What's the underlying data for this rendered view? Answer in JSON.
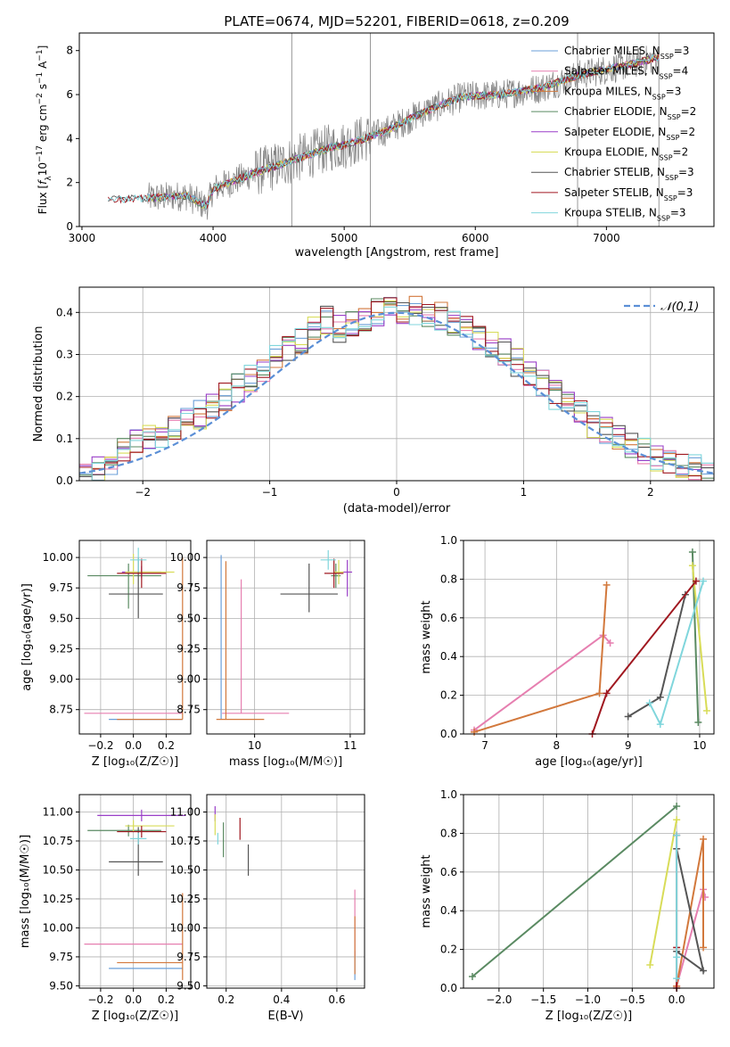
{
  "title": "PLATE=0674, MJD=52201, FIBERID=0618, z=0.209",
  "colors": {
    "chabrier_miles": "#6a9fd8",
    "salpeter_miles": "#e67fb0",
    "kroupa_miles": "#d2783c",
    "chabrier_elodie": "#5a8a62",
    "salpeter_elodie": "#9a3fc8",
    "kroupa_elodie": "#d8dc58",
    "chabrier_stelib": "#555555",
    "salpeter_stelib": "#a01820",
    "kroupa_stelib": "#80d6dc",
    "data": "#808080",
    "normal": "#5b8fd6"
  },
  "chart_data": [
    {
      "id": "spectrum",
      "type": "line",
      "xlabel": "wavelength [Angstrom, rest frame]",
      "ylabel_parts": [
        "Flux [",
        "f",
        "λ",
        "10",
        "−17",
        " erg cm",
        "−2",
        " s",
        "−1",
        " A",
        "−1",
        "]"
      ],
      "xlim": [
        2980,
        7820
      ],
      "ylim": [
        0,
        8.8
      ],
      "xticks": [
        3000,
        4000,
        5000,
        6000,
        7000
      ],
      "yticks": [
        0,
        2,
        4,
        6,
        8
      ],
      "legend": [
        {
          "label": "Chabrier MILES, N",
          "sub": "SSP",
          "val": "=3"
        },
        {
          "label": "Salpeter MILES, N",
          "sub": "SSP",
          "val": "=4"
        },
        {
          "label": "Kroupa MILES, N",
          "sub": "SSP",
          "val": "=3"
        },
        {
          "label": "Chabrier ELODIE, N",
          "sub": "SSP",
          "val": "=2"
        },
        {
          "label": "Salpeter ELODIE, N",
          "sub": "SSP",
          "val": "=2"
        },
        {
          "label": "Kroupa ELODIE, N",
          "sub": "SSP",
          "val": "=2"
        },
        {
          "label": "Chabrier STELIB, N",
          "sub": "SSP",
          "val": "=3"
        },
        {
          "label": "Salpeter STELIB, N",
          "sub": "SSP",
          "val": "=3"
        },
        {
          "label": "Kroupa STELIB, N",
          "sub": "SSP",
          "val": "=3"
        }
      ],
      "continuum": [
        [
          3200,
          1.2
        ],
        [
          3500,
          1.3
        ],
        [
          3800,
          1.4
        ],
        [
          3950,
          0.9
        ],
        [
          4000,
          1.7
        ],
        [
          4300,
          2.4
        ],
        [
          4600,
          3.0
        ],
        [
          4900,
          3.6
        ],
        [
          5000,
          3.7
        ],
        [
          5300,
          4.3
        ],
        [
          5600,
          5.2
        ],
        [
          5900,
          5.9
        ],
        [
          6200,
          6.0
        ],
        [
          6500,
          6.3
        ],
        [
          6800,
          6.9
        ],
        [
          7200,
          7.4
        ],
        [
          7400,
          7.7
        ]
      ],
      "spikes": [
        [
          4600,
          8.8
        ],
        [
          5200,
          8.8
        ],
        [
          6780,
          8.8
        ],
        [
          7400,
          8.8
        ]
      ]
    },
    {
      "id": "residuals",
      "type": "histogram",
      "xlabel": "(data-model)/error",
      "ylabel": "Normed distribution",
      "xlim": [
        -2.5,
        2.5
      ],
      "ylim": [
        0,
        0.46
      ],
      "xticks": [
        -2,
        -1,
        0,
        1,
        2
      ],
      "yticks": [
        0.0,
        0.1,
        0.2,
        0.3,
        0.4
      ],
      "legend": [
        "𝒩(0,1)"
      ],
      "bin_edges_start": -2.5,
      "bin_width": 0.1
    },
    {
      "id": "age_vs_Z",
      "type": "errorbar",
      "xlabel": "Z [log₁₀(Z/Z☉)]",
      "ylabel": "age  [log₁₀(age/yr)]",
      "xlim": [
        -0.33,
        0.35
      ],
      "ylim": [
        8.55,
        10.14
      ],
      "xticks": [
        -0.2,
        0.0,
        0.2
      ],
      "yticks": [
        8.75,
        9.0,
        9.25,
        9.5,
        9.75,
        10.0
      ],
      "points": [
        {
          "k": "chabrier_miles",
          "x": 0.05,
          "y": 8.67,
          "xe": [
            0.2,
            0.25
          ],
          "ye": [
            0,
            0
          ]
        },
        {
          "k": "salpeter_miles",
          "x": 0.0,
          "y": 8.72,
          "xe": [
            0.3,
            0.3
          ],
          "ye": [
            0,
            0
          ]
        },
        {
          "k": "kroupa_miles",
          "x": 0.1,
          "y": 8.67,
          "xe": [
            0.2,
            0.2
          ],
          "ye": [
            0,
            0
          ]
        },
        {
          "k": "kroupa_miles",
          "x": 0.3,
          "y": 10.0,
          "xe": [
            0,
            0
          ],
          "ye": [
            1.33,
            0
          ]
        },
        {
          "k": "chabrier_elodie",
          "x": -0.03,
          "y": 9.85,
          "xe": [
            0.25,
            0.2
          ],
          "ye": [
            0.27,
            0.1
          ]
        },
        {
          "k": "salpeter_elodie",
          "x": 0.05,
          "y": 9.88,
          "xe": [
            0.12,
            0.12
          ],
          "ye": [
            0.05,
            0.05
          ]
        },
        {
          "k": "kroupa_elodie",
          "x": 0.0,
          "y": 9.88,
          "xe": [
            0.05,
            0.25
          ],
          "ye": [
            0.1,
            0.15
          ]
        },
        {
          "k": "chabrier_stelib",
          "x": 0.03,
          "y": 9.7,
          "xe": [
            0.18,
            0.15
          ],
          "ye": [
            0.2,
            0.3
          ]
        },
        {
          "k": "salpeter_stelib",
          "x": 0.05,
          "y": 9.87,
          "xe": [
            0.15,
            0.15
          ],
          "ye": [
            0.12,
            0.12
          ]
        },
        {
          "k": "kroupa_stelib",
          "x": 0.03,
          "y": 9.98,
          "xe": [
            0.05,
            0.05
          ],
          "ye": [
            0.1,
            0.1
          ]
        }
      ]
    },
    {
      "id": "age_vs_mass",
      "type": "errorbar",
      "xlabel": "mass [log₁₀(M/M☉)]",
      "ylabel": "",
      "xlim": [
        9.5,
        11.15
      ],
      "ylim": [
        8.55,
        10.14
      ],
      "xticks": [
        10,
        11
      ],
      "yticks": [
        8.75,
        9.0,
        9.25,
        9.5,
        9.75,
        10.0
      ],
      "points": [
        {
          "k": "chabrier_miles",
          "x": 9.65,
          "y": 8.67,
          "xe": [
            0,
            0
          ],
          "ye": [
            0,
            1.35
          ]
        },
        {
          "k": "salpeter_miles",
          "x": 9.86,
          "y": 8.72,
          "xe": [
            0.2,
            0.5
          ],
          "ye": [
            0,
            1.1
          ]
        },
        {
          "k": "kroupa_miles",
          "x": 9.7,
          "y": 8.67,
          "xe": [
            0.1,
            0.4
          ],
          "ye": [
            0,
            1.3
          ]
        },
        {
          "k": "chabrier_elodie",
          "x": 10.85,
          "y": 9.85,
          "xe": [
            0.05,
            0.05
          ],
          "ye": [
            0.1,
            0.1
          ]
        },
        {
          "k": "salpeter_elodie",
          "x": 10.97,
          "y": 9.88,
          "xe": [
            0.05,
            0.05
          ],
          "ye": [
            0.2,
            0.1
          ]
        },
        {
          "k": "kroupa_elodie",
          "x": 10.88,
          "y": 9.88,
          "xe": [
            0.05,
            0.05
          ],
          "ye": [
            0.1,
            0.1
          ]
        },
        {
          "k": "chabrier_stelib",
          "x": 10.57,
          "y": 9.7,
          "xe": [
            0.3,
            0.3
          ],
          "ye": [
            0.15,
            0.25
          ]
        },
        {
          "k": "salpeter_stelib",
          "x": 10.83,
          "y": 9.87,
          "xe": [
            0.1,
            0.1
          ],
          "ye": [
            0.12,
            0.12
          ]
        },
        {
          "k": "kroupa_stelib",
          "x": 10.77,
          "y": 9.98,
          "xe": [
            0.08,
            0.08
          ],
          "ye": [
            0.08,
            0.08
          ]
        }
      ]
    },
    {
      "id": "weight_vs_age",
      "type": "line",
      "xlabel": "age  [log₁₀(age/yr)]",
      "ylabel": "mass weight",
      "xlim": [
        6.7,
        10.2
      ],
      "ylim": [
        0,
        1.0
      ],
      "xticks": [
        7,
        8,
        9,
        10
      ],
      "yticks": [
        0.0,
        0.2,
        0.4,
        0.6,
        0.8,
        1.0
      ],
      "series": [
        {
          "k": "salpeter_miles",
          "pts": [
            [
              6.85,
              0.02
            ],
            [
              8.65,
              0.51
            ],
            [
              8.75,
              0.47
            ]
          ]
        },
        {
          "k": "kroupa_miles",
          "pts": [
            [
              6.85,
              0.01
            ],
            [
              8.6,
              0.21
            ],
            [
              8.7,
              0.77
            ]
          ]
        },
        {
          "k": "chabrier_elodie",
          "pts": [
            [
              9.9,
              0.94
            ],
            [
              9.98,
              0.06
            ]
          ]
        },
        {
          "k": "kroupa_elodie",
          "pts": [
            [
              9.9,
              0.87
            ],
            [
              10.1,
              0.12
            ]
          ]
        },
        {
          "k": "chabrier_stelib",
          "pts": [
            [
              9.0,
              0.09
            ],
            [
              9.45,
              0.19
            ],
            [
              9.8,
              0.72
            ]
          ]
        },
        {
          "k": "salpeter_stelib",
          "pts": [
            [
              8.5,
              0.0
            ],
            [
              8.7,
              0.21
            ],
            [
              9.95,
              0.79
            ]
          ]
        },
        {
          "k": "kroupa_stelib",
          "pts": [
            [
              9.3,
              0.16
            ],
            [
              9.45,
              0.05
            ],
            [
              10.05,
              0.79
            ]
          ]
        }
      ]
    },
    {
      "id": "mass_vs_Z",
      "type": "errorbar",
      "xlabel": "Z [log₁₀(Z/Z☉)]",
      "ylabel": "mass [log₁₀(M/M☉)]",
      "xlim": [
        -0.33,
        0.35
      ],
      "ylim": [
        9.48,
        11.15
      ],
      "xticks": [
        -0.2,
        0.0,
        0.2
      ],
      "yticks": [
        9.5,
        9.75,
        10.0,
        10.25,
        10.5,
        10.75,
        11.0
      ],
      "points": [
        {
          "k": "chabrier_miles",
          "x": 0.05,
          "y": 9.65,
          "xe": [
            0.2,
            0.25
          ],
          "ye": [
            0,
            0
          ]
        },
        {
          "k": "salpeter_miles",
          "x": 0.0,
          "y": 9.86,
          "xe": [
            0.3,
            0.3
          ],
          "ye": [
            0,
            0
          ]
        },
        {
          "k": "kroupa_miles",
          "x": 0.1,
          "y": 9.7,
          "xe": [
            0.2,
            0.2
          ],
          "ye": [
            0,
            0
          ]
        },
        {
          "k": "kroupa_miles",
          "x": 0.3,
          "y": 9.7,
          "xe": [
            0,
            0
          ],
          "ye": [
            0.15,
            0.6
          ]
        },
        {
          "k": "chabrier_elodie",
          "x": -0.03,
          "y": 10.84,
          "xe": [
            0.25,
            0.2
          ],
          "ye": [
            0.05,
            0.05
          ]
        },
        {
          "k": "salpeter_elodie",
          "x": 0.05,
          "y": 10.97,
          "xe": [
            0.27,
            0.27
          ],
          "ye": [
            0.05,
            0.05
          ]
        },
        {
          "k": "kroupa_elodie",
          "x": 0.0,
          "y": 10.88,
          "xe": [
            0.05,
            0.25
          ],
          "ye": [
            0.05,
            0.05
          ]
        },
        {
          "k": "chabrier_stelib",
          "x": 0.03,
          "y": 10.57,
          "xe": [
            0.18,
            0.15
          ],
          "ye": [
            0.12,
            0.3
          ]
        },
        {
          "k": "salpeter_stelib",
          "x": 0.05,
          "y": 10.83,
          "xe": [
            0.15,
            0.15
          ],
          "ye": [
            0.05,
            0.05
          ]
        },
        {
          "k": "kroupa_stelib",
          "x": 0.03,
          "y": 10.77,
          "xe": [
            0.05,
            0.05
          ],
          "ye": [
            0.05,
            0.05
          ]
        }
      ]
    },
    {
      "id": "mass_vs_ebv",
      "type": "errorbar",
      "xlabel": "E(B-V)",
      "ylabel": "",
      "xlim": [
        0.13,
        0.7
      ],
      "ylim": [
        9.48,
        11.15
      ],
      "xticks": [
        0.2,
        0.4,
        0.6
      ],
      "yticks": [
        9.5,
        9.75,
        10.0,
        10.25,
        10.5,
        10.75,
        11.0
      ],
      "points": [
        {
          "k": "chabrier_miles",
          "x": 0.665,
          "y": 9.65,
          "xe": [
            0,
            0
          ],
          "ye": [
            0.1,
            0.15
          ]
        },
        {
          "k": "salpeter_miles",
          "x": 0.665,
          "y": 9.86,
          "xe": [
            0,
            0
          ],
          "ye": [
            0.1,
            0.47
          ]
        },
        {
          "k": "kroupa_miles",
          "x": 0.665,
          "y": 9.7,
          "xe": [
            0,
            0
          ],
          "ye": [
            0.1,
            0.4
          ]
        },
        {
          "k": "chabrier_elodie",
          "x": 0.19,
          "y": 10.84,
          "xe": [
            0,
            0
          ],
          "ye": [
            0.23,
            0.07
          ]
        },
        {
          "k": "salpeter_elodie",
          "x": 0.16,
          "y": 10.97,
          "xe": [
            0,
            0
          ],
          "ye": [
            0.05,
            0.08
          ]
        },
        {
          "k": "kroupa_elodie",
          "x": 0.16,
          "y": 10.88,
          "xe": [
            0,
            0
          ],
          "ye": [
            0.08,
            0.1
          ]
        },
        {
          "k": "chabrier_stelib",
          "x": 0.28,
          "y": 10.57,
          "xe": [
            0,
            0
          ],
          "ye": [
            0.12,
            0.15
          ]
        },
        {
          "k": "salpeter_stelib",
          "x": 0.25,
          "y": 10.83,
          "xe": [
            0,
            0
          ],
          "ye": [
            0.07,
            0.12
          ]
        },
        {
          "k": "kroupa_stelib",
          "x": 0.17,
          "y": 10.77,
          "xe": [
            0,
            0
          ],
          "ye": [
            0.05,
            0.05
          ]
        }
      ]
    },
    {
      "id": "weight_vs_Z",
      "type": "line",
      "xlabel": "Z [log₁₀(Z/Z☉)]",
      "ylabel": "mass weight",
      "xlim": [
        -2.4,
        0.42
      ],
      "ylim": [
        0,
        1.0
      ],
      "xticks": [
        -2.0,
        -1.5,
        -1.0,
        -0.5,
        0.0
      ],
      "yticks": [
        0.0,
        0.2,
        0.4,
        0.6,
        0.8,
        1.0
      ],
      "series": [
        {
          "k": "chabrier_elodie",
          "pts": [
            [
              -2.3,
              0.06
            ],
            [
              0.0,
              0.94
            ]
          ]
        },
        {
          "k": "salpeter_miles",
          "pts": [
            [
              0.0,
              0.01
            ],
            [
              0.3,
              0.51
            ],
            [
              0.32,
              0.47
            ]
          ]
        },
        {
          "k": "kroupa_miles",
          "pts": [
            [
              0.0,
              0.01
            ],
            [
              0.3,
              0.77
            ],
            [
              0.3,
              0.21
            ]
          ]
        },
        {
          "k": "kroupa_elodie",
          "pts": [
            [
              -0.3,
              0.12
            ],
            [
              0.0,
              0.87
            ]
          ]
        },
        {
          "k": "chabrier_stelib",
          "pts": [
            [
              0.0,
              0.19
            ],
            [
              0.3,
              0.09
            ],
            [
              0.0,
              0.72
            ]
          ]
        },
        {
          "k": "salpeter_stelib",
          "pts": [
            [
              0.0,
              0.0
            ],
            [
              0.0,
              0.21
            ],
            [
              0.0,
              0.79
            ]
          ]
        },
        {
          "k": "kroupa_stelib",
          "pts": [
            [
              0.0,
              0.16
            ],
            [
              0.0,
              0.05
            ],
            [
              0.0,
              0.79
            ]
          ]
        }
      ]
    }
  ]
}
